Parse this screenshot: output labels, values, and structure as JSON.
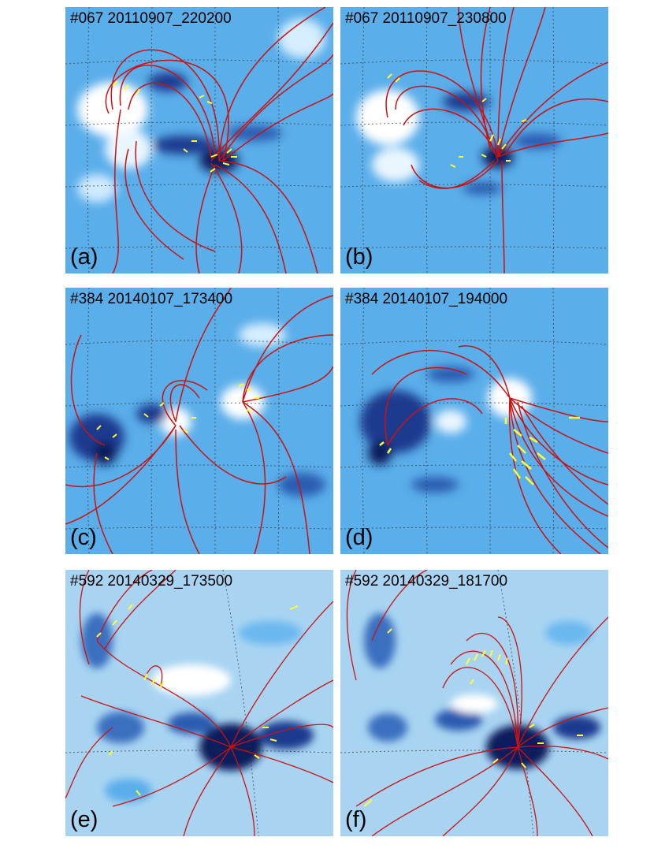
{
  "panels": [
    {
      "title": "#067 20110907_220200",
      "label": "(a)"
    },
    {
      "title": "#067 20110907_230800",
      "label": "(b)"
    },
    {
      "title": "#384 20140107_173400",
      "label": "(c)"
    },
    {
      "title": "#384 20140107_194000",
      "label": "(d)"
    },
    {
      "title": "#592 20140329_173500",
      "label": "(e)"
    },
    {
      "title": "#592 20140329_181700",
      "label": "(f)"
    }
  ],
  "colors": {
    "background_field": "#5aaeea",
    "positive_polarity": "#ffffff",
    "negative_polarity": "#0a1a5c",
    "loop_lines": "#cc1111",
    "loop_footpoints": "#ffff33",
    "grid": "#333333"
  }
}
